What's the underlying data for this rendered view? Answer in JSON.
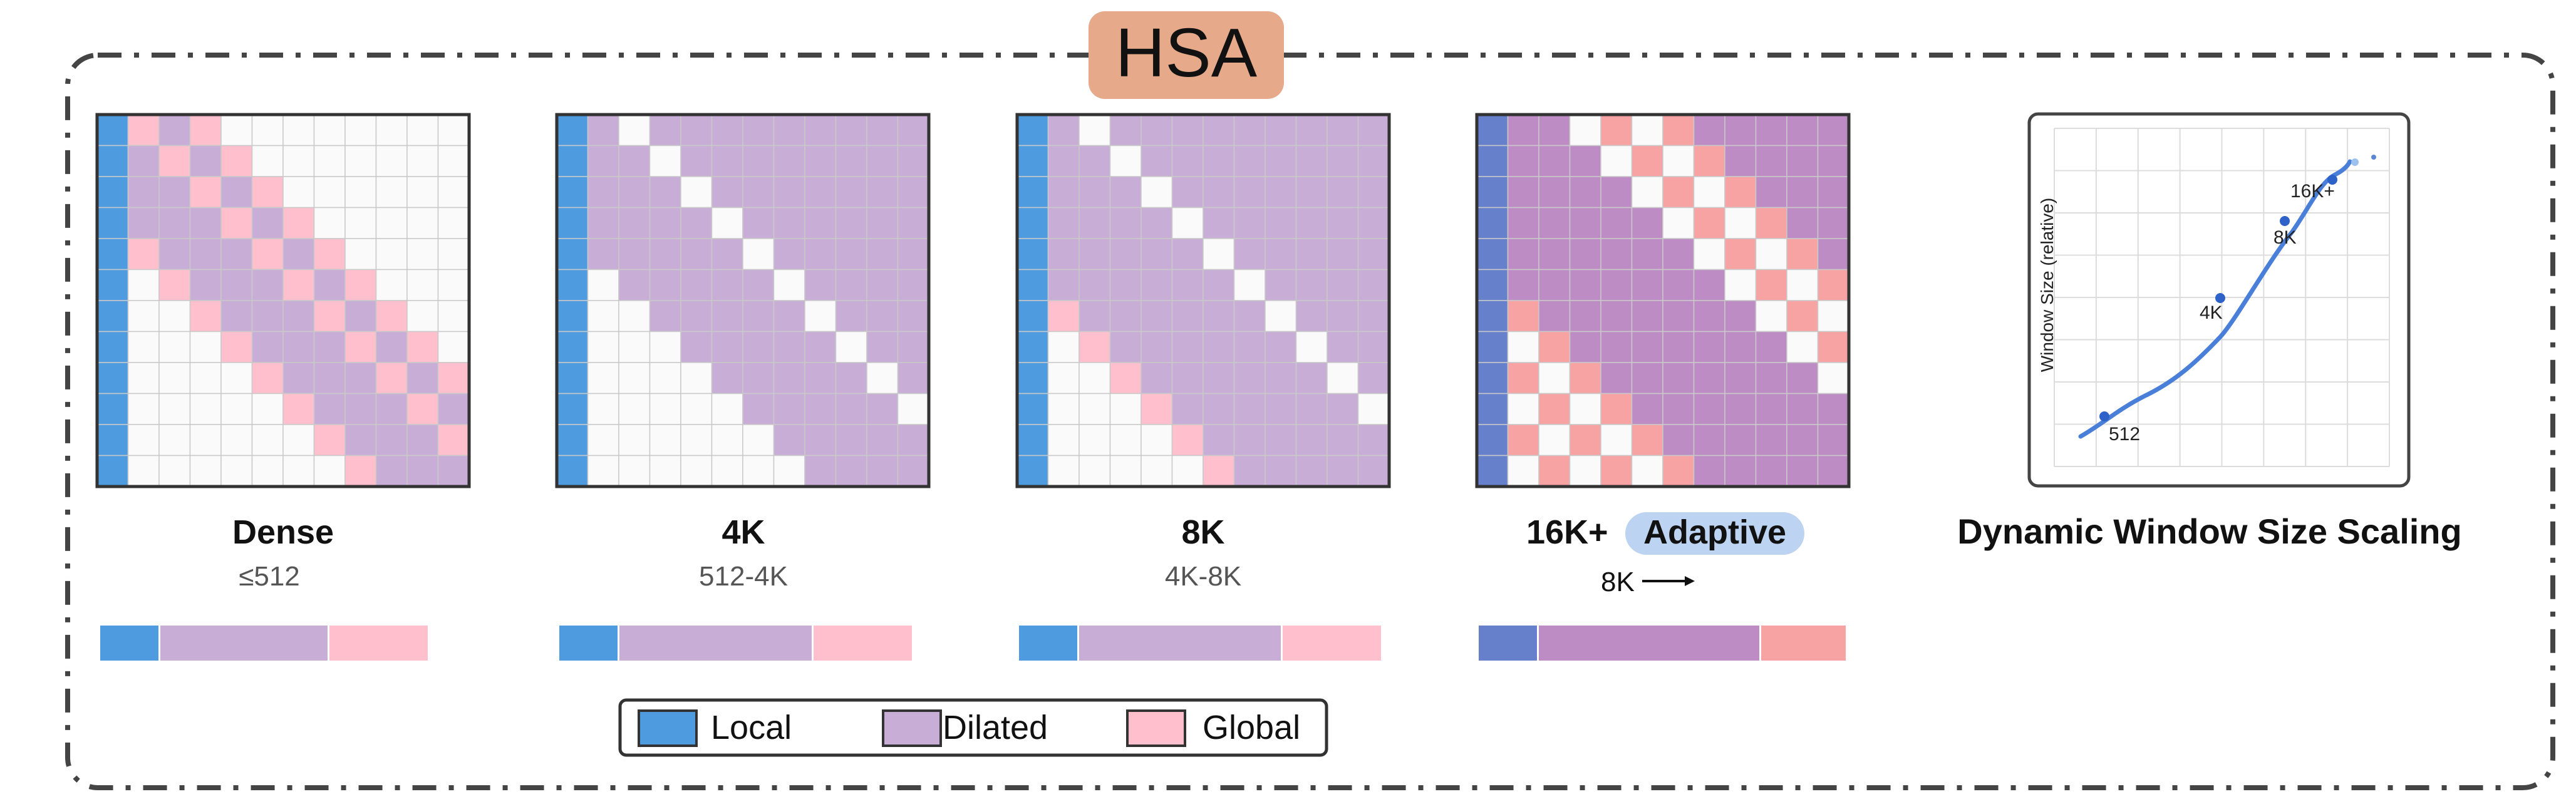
{
  "title": "HSA",
  "colors": {
    "local": "#4e9be0",
    "dilated": "#c8aed6",
    "global": "#ffbfcc",
    "empty": "#fafafa",
    "grid": "#c9c9c9",
    "border": "#333333",
    "title_bg": "#e6a98a",
    "adaptive_bg": "#bdd3f2",
    "adaptive_local": "#6680cc",
    "adaptive_dilated": "#bd8cc4",
    "adaptive_global": "#f7a3a3",
    "curve": "#4a7fd9",
    "dot": "#2f62c8"
  },
  "panels": [
    {
      "label": "Dense",
      "range": "≤512",
      "band": 2,
      "fill": "band"
    },
    {
      "label": "4K",
      "range": "512-4K",
      "band": 3,
      "fill": "lower"
    },
    {
      "label": "8K",
      "range": "4K-8K",
      "band": 4,
      "fill": "lower"
    },
    {
      "label": "16K+",
      "badge": "Adaptive",
      "arrow_text": "8K",
      "band": 6,
      "fill": "adaptive"
    }
  ],
  "legend": {
    "local": "Local",
    "dilated": "Dilated",
    "global": "Global"
  },
  "scaling_plot": {
    "title": "Dynamic Window Size Scaling",
    "ylabel": "Window Size (relative)",
    "points": [
      "512",
      "4K",
      "8K",
      "16K+"
    ]
  }
}
